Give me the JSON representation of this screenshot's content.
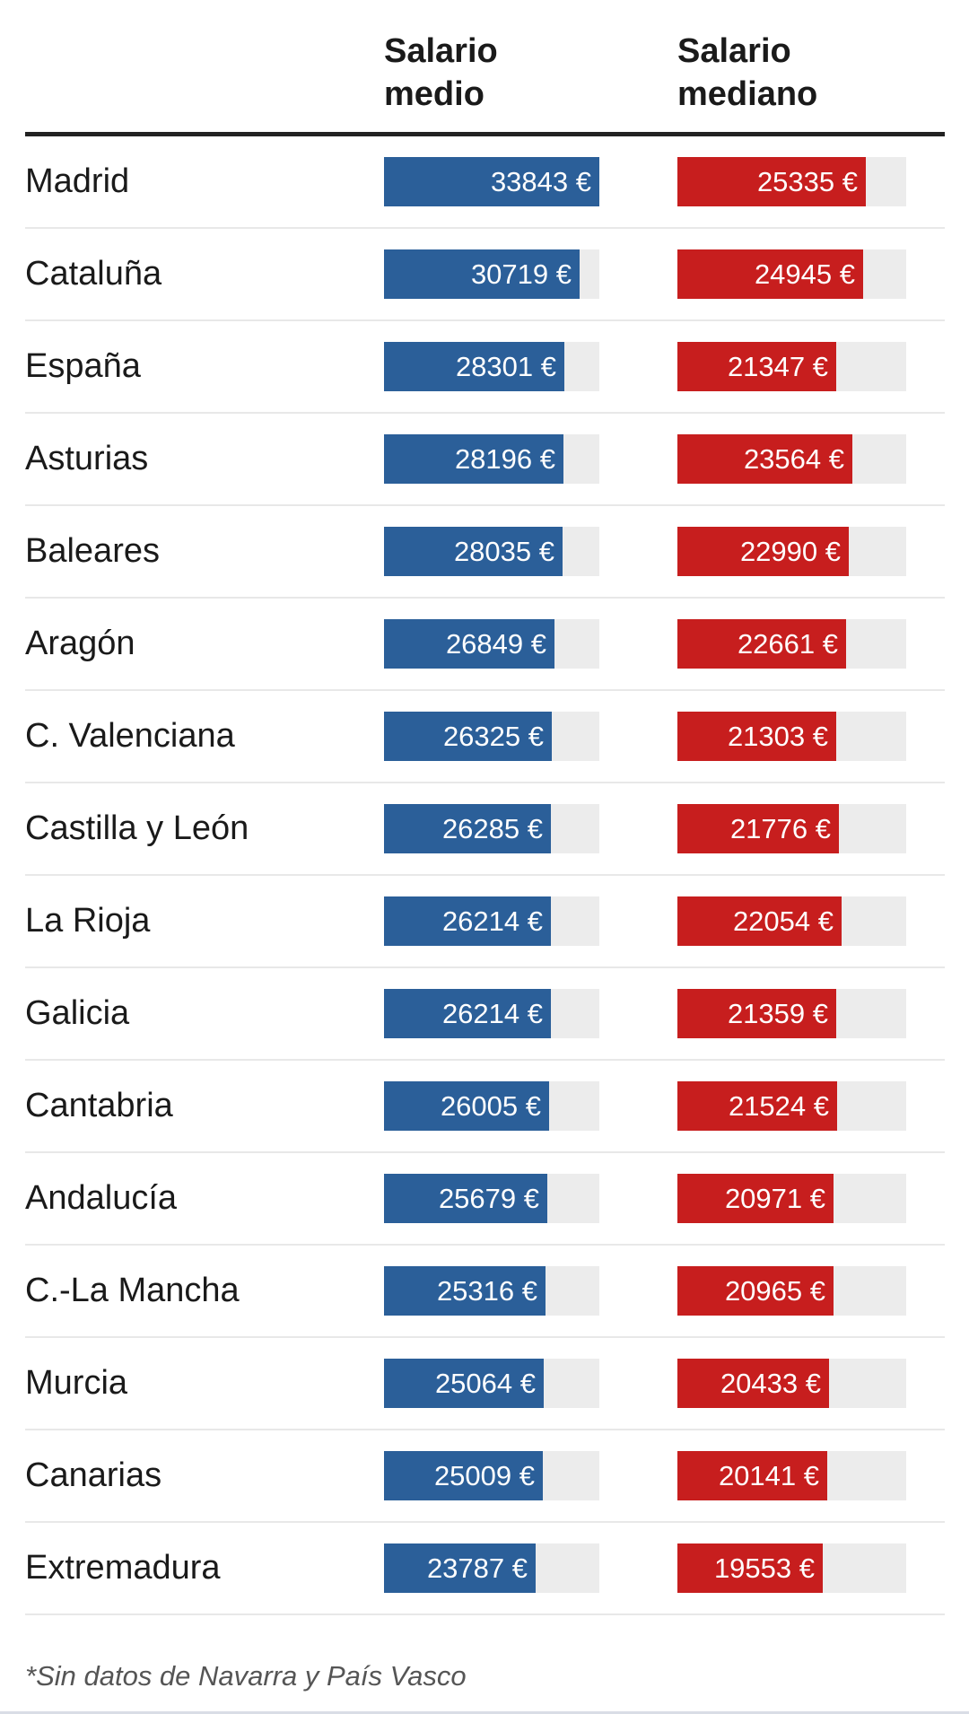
{
  "colors": {
    "mean_bar": "#2b5f99",
    "median_bar": "#c71e1e",
    "track": "#ececec",
    "header_rule": "#222222"
  },
  "header": {
    "mean_line1": "Salario",
    "mean_line2": "medio",
    "median_line1": "Salario",
    "median_line2": "mediano"
  },
  "footnote": "*Sin datos de Navarra y País Vasco",
  "chart_data": {
    "type": "table",
    "unit_suffix": " €",
    "columns": [
      "Salario medio",
      "Salario mediano"
    ],
    "series": [
      {
        "name": "Salario medio",
        "values": [
          33843,
          30719,
          28301,
          28196,
          28035,
          26849,
          26325,
          26285,
          26214,
          26214,
          26005,
          25679,
          25316,
          25064,
          25009,
          23787
        ],
        "max": 33843
      },
      {
        "name": "Salario mediano",
        "values": [
          25335,
          24945,
          21347,
          23564,
          22990,
          22661,
          21303,
          21776,
          22054,
          21359,
          21524,
          20971,
          20965,
          20433,
          20141,
          19553
        ],
        "max": 25335
      }
    ],
    "rows": [
      {
        "region": "Madrid",
        "mean_label": "33843 €",
        "median_label": "25335 €"
      },
      {
        "region": "Cataluña",
        "mean_label": "30719 €",
        "median_label": "24945 €"
      },
      {
        "region": "España",
        "mean_label": "28301 €",
        "median_label": "21347 €"
      },
      {
        "region": "Asturias",
        "mean_label": "28196 €",
        "median_label": "23564 €"
      },
      {
        "region": "Baleares",
        "mean_label": "28035 €",
        "median_label": "22990 €"
      },
      {
        "region": "Aragón",
        "mean_label": "26849 €",
        "median_label": "22661 €"
      },
      {
        "region": "C. Valenciana",
        "mean_label": "26325 €",
        "median_label": "21303 €"
      },
      {
        "region": "Castilla y León",
        "mean_label": "26285 €",
        "median_label": "21776 €"
      },
      {
        "region": "La Rioja",
        "mean_label": "26214 €",
        "median_label": "22054 €"
      },
      {
        "region": "Galicia",
        "mean_label": "26214 €",
        "median_label": "21359 €"
      },
      {
        "region": "Cantabria",
        "mean_label": "26005 €",
        "median_label": "21524 €"
      },
      {
        "region": "Andalucía",
        "mean_label": "25679 €",
        "median_label": "20971 €"
      },
      {
        "region": "C.-La Mancha",
        "mean_label": "25316 €",
        "median_label": "20965 €"
      },
      {
        "region": "Murcia",
        "mean_label": "25064 €",
        "median_label": "20433 €"
      },
      {
        "region": "Canarias",
        "mean_label": "25009 €",
        "median_label": "20141 €"
      },
      {
        "region": "Extremadura",
        "mean_label": "23787 €",
        "median_label": "19553 €"
      }
    ]
  }
}
